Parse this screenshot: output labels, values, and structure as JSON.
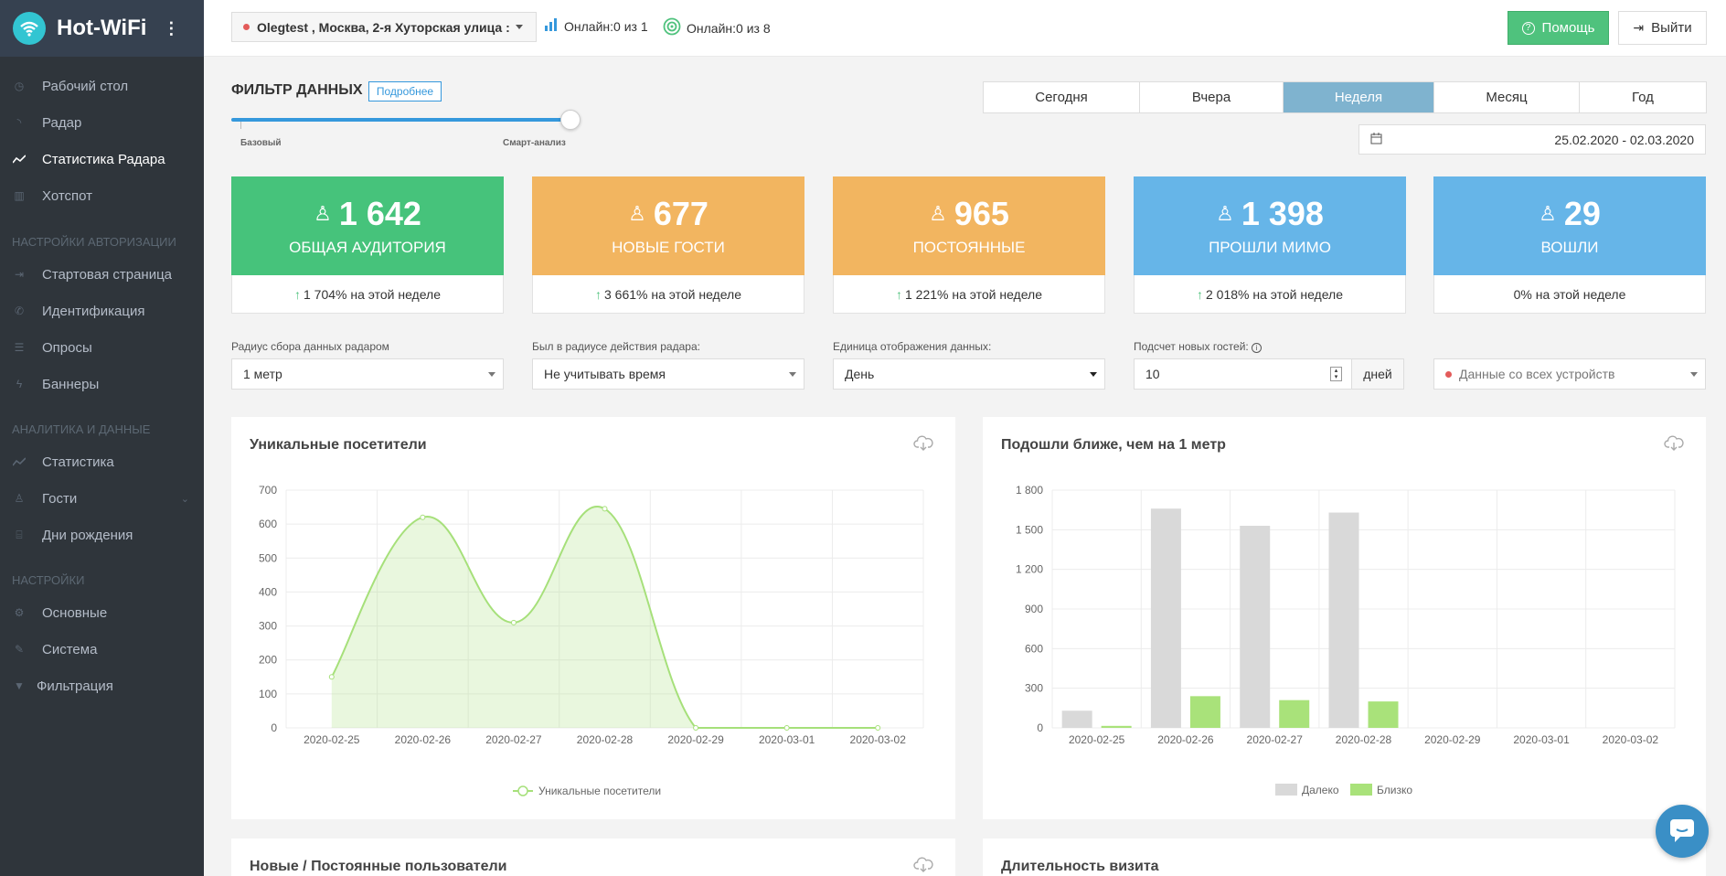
{
  "app": {
    "title": "Hot-WiFi"
  },
  "sidebar": {
    "items": [
      {
        "label": "Рабочий стол",
        "icon": "dashboard-icon"
      },
      {
        "label": "Радар",
        "icon": "rss-icon"
      },
      {
        "label": "Статистика Радара",
        "icon": "chart-line-icon",
        "active": true
      },
      {
        "label": "Хотспот",
        "icon": "bar-chart-icon"
      }
    ],
    "auth_section": "Настройки авторизации",
    "auth_items": [
      {
        "label": "Стартовая страница",
        "icon": "login-icon"
      },
      {
        "label": "Идентификация",
        "icon": "phone-icon"
      },
      {
        "label": "Опросы",
        "icon": "list-icon"
      },
      {
        "label": "Баннеры",
        "icon": "bolt-icon"
      }
    ],
    "analytics_section": "Аналитика и данные",
    "analytics_items": [
      {
        "label": "Статистика",
        "icon": "chart-line-icon"
      },
      {
        "label": "Гости",
        "icon": "users-icon"
      },
      {
        "label": "Дни рождения",
        "icon": "gift-icon"
      }
    ],
    "settings_section": "Настройки",
    "settings_items": [
      {
        "label": "Основные",
        "icon": "gear-icon"
      },
      {
        "label": "Система",
        "icon": "wrench-icon"
      },
      {
        "label": "Фильтрация",
        "icon": "filter-icon"
      }
    ]
  },
  "topbar": {
    "location": "Olegtest , Москва, 2-я Хуторская улица :",
    "online1": "Онлайн:0 из 1",
    "online2": "Онлайн:0 из 8",
    "help": "Помощь",
    "exit": "Выйти"
  },
  "filter": {
    "title": "ФИЛЬТР ДАННЫХ",
    "more": "Подробнее",
    "slider_min": "Базовый",
    "slider_max": "Смарт-анализ",
    "slider_level": 1.0
  },
  "periods": {
    "options": [
      "Сегодня",
      "Вчера",
      "Неделя",
      "Месяц",
      "Год"
    ],
    "selected": "Неделя"
  },
  "daterange": "25.02.2020 - 02.03.2020",
  "cards": [
    {
      "value": "1 642",
      "label": "ОБЩАЯ АУДИТОРИЯ",
      "footer": "1 704% на этой неделе",
      "up": true,
      "color": "#46c37b"
    },
    {
      "value": "677",
      "label": "НОВЫЕ ГОСТИ",
      "footer": "3 661% на этой неделе",
      "up": true,
      "color": "#f2b560"
    },
    {
      "value": "965",
      "label": "ПОСТОЯННЫЕ",
      "footer": "1 221% на этой неделе",
      "up": true,
      "color": "#f2b560"
    },
    {
      "value": "1 398",
      "label": "ПРОШЛИ МИМО",
      "footer": "2 018% на этой неделе",
      "up": true,
      "color": "#66b5e8"
    },
    {
      "value": "29",
      "label": "ВОШЛИ",
      "footer": "0% на этой неделе",
      "up": false,
      "color": "#66b5e8"
    }
  ],
  "filters": {
    "radius_label": "Радиус сбора данных радаром",
    "radius_value": "1 метр",
    "time_label": "Был в радиусе действия радара:",
    "time_value": "Не учитывать время",
    "unit_label": "Единица отображения данных:",
    "unit_value": "День",
    "newguests_label": "Подсчет новых гостей:",
    "newguests_value": "10",
    "newguests_unit": "дней",
    "devices_value": "Данные со всех устройств"
  },
  "panels": {
    "unique_title": "Уникальные посетители",
    "near_title": "Подошли ближе, чем на 1 метр",
    "newold_title": "Новые / Постоянные пользователи",
    "duration_title": "Длительность визита"
  },
  "chart_data": [
    {
      "type": "area",
      "title": "Уникальные посетители",
      "x": [
        "2020-02-25",
        "2020-02-26",
        "2020-02-27",
        "2020-02-28",
        "2020-02-29",
        "2020-03-01",
        "2020-03-02"
      ],
      "series": [
        {
          "name": "Уникальные посетители",
          "values": [
            150,
            620,
            310,
            645,
            0,
            0,
            0
          ],
          "color": "#a6e07a"
        }
      ],
      "ylim": [
        0,
        700
      ],
      "yticks": [
        0,
        100,
        200,
        300,
        400,
        500,
        600,
        700
      ],
      "grid": true,
      "legend": "bottom"
    },
    {
      "type": "bar",
      "title": "Подошли ближе, чем на 1 метр",
      "categories": [
        "2020-02-25",
        "2020-02-26",
        "2020-02-27",
        "2020-02-28",
        "2020-02-29",
        "2020-03-01",
        "2020-03-02"
      ],
      "series": [
        {
          "name": "Далеко",
          "values": [
            130,
            1660,
            1530,
            1630,
            0,
            0,
            0
          ],
          "color": "#d9d9d9"
        },
        {
          "name": "Близко",
          "values": [
            15,
            240,
            210,
            200,
            0,
            0,
            0
          ],
          "color": "#a9e27a"
        }
      ],
      "ylim": [
        0,
        1800
      ],
      "yticks": [
        "0",
        "300",
        "600",
        "900",
        "1 200",
        "1 500",
        "1 800"
      ],
      "grid": true,
      "legend": "bottom"
    }
  ]
}
